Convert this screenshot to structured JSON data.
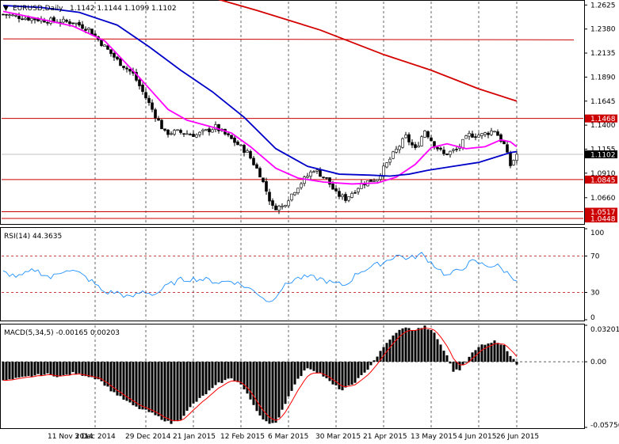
{
  "header": {
    "symbol": "EURUSD,Daily",
    "ohlc": "1.1142 1.1144 1.1099 1.1102"
  },
  "colors": {
    "bull": "#ffffff",
    "bear": "#000000",
    "ma_fast": "#ff00ff",
    "ma_mid": "#0000c8",
    "ma_slow": "#d40000",
    "level_line": "#cc0000",
    "rsi": "#1e90ff",
    "macd_signal": "#ff0000",
    "grid": "#000000"
  },
  "chart_data": [
    {
      "type": "candlestick",
      "title": "EURUSD,Daily",
      "ylim": [
        1.04,
        1.266
      ],
      "y_ticks": [
        "1.2625",
        "1.2380",
        "1.2135",
        "1.1890",
        "1.1645",
        "1.1400",
        "1.1155",
        "1.0910",
        "1.0660"
      ],
      "x_tick_labels": [
        "11 Nov 2014",
        "3 Dec 2014",
        "29 Dec 2014",
        "21 Jan 2015",
        "12 Feb 2015",
        "6 Mar 2015",
        "30 Mar 2015",
        "21 Apr 2015",
        "13 May 2015",
        "4 Jun 2015",
        "26 Jun 2015"
      ],
      "bars_count": 163,
      "price_anchors": [
        [
          0,
          1.253
        ],
        [
          8,
          1.249
        ],
        [
          16,
          1.246
        ],
        [
          22,
          1.245
        ],
        [
          27,
          1.238
        ],
        [
          32,
          1.22
        ],
        [
          36,
          1.206
        ],
        [
          41,
          1.192
        ],
        [
          46,
          1.162
        ],
        [
          51,
          1.132
        ],
        [
          55,
          1.133
        ],
        [
          61,
          1.13
        ],
        [
          67,
          1.138
        ],
        [
          73,
          1.123
        ],
        [
          77,
          1.112
        ],
        [
          81,
          1.09
        ],
        [
          85,
          1.056
        ],
        [
          88,
          1.057
        ],
        [
          93,
          1.078
        ],
        [
          98,
          1.095
        ],
        [
          102,
          1.085
        ],
        [
          105,
          1.07
        ],
        [
          108,
          1.065
        ],
        [
          113,
          1.08
        ],
        [
          118,
          1.086
        ],
        [
          123,
          1.11
        ],
        [
          127,
          1.128
        ],
        [
          130,
          1.115
        ],
        [
          133,
          1.135
        ],
        [
          136,
          1.12
        ],
        [
          139,
          1.11
        ],
        [
          143,
          1.115
        ],
        [
          147,
          1.13
        ],
        [
          151,
          1.13
        ],
        [
          155,
          1.135
        ],
        [
          158,
          1.12
        ],
        [
          160,
          1.099
        ],
        [
          162,
          1.1102
        ]
      ],
      "moving_averages": [
        {
          "name": "",
          "color": "#ff00ff",
          "values": [
            [
              0,
              1.256
            ],
            [
              12,
              1.248
            ],
            [
              22,
              1.241
            ],
            [
              32,
              1.226
            ],
            [
              42,
              1.192
            ],
            [
              52,
              1.156
            ],
            [
              58,
              1.145
            ],
            [
              66,
              1.138
            ],
            [
              72,
              1.132
            ],
            [
              78,
              1.118
            ],
            [
              86,
              1.096
            ],
            [
              93,
              1.086
            ],
            [
              101,
              1.082
            ],
            [
              110,
              1.08
            ],
            [
              118,
              1.081
            ],
            [
              124,
              1.087
            ],
            [
              130,
              1.1
            ],
            [
              135,
              1.117
            ],
            [
              140,
              1.121
            ],
            [
              146,
              1.116
            ],
            [
              152,
              1.118
            ],
            [
              157,
              1.125
            ],
            [
              160,
              1.123
            ],
            [
              162,
              1.118
            ]
          ]
        },
        {
          "name": "",
          "color": "#0000c8",
          "values": [
            [
              0,
              1.262
            ],
            [
              12,
              1.26
            ],
            [
              24,
              1.255
            ],
            [
              36,
              1.242
            ],
            [
              46,
              1.22
            ],
            [
              56,
              1.196
            ],
            [
              66,
              1.174
            ],
            [
              76,
              1.148
            ],
            [
              86,
              1.116
            ],
            [
              96,
              1.098
            ],
            [
              106,
              1.09
            ],
            [
              116,
              1.089
            ],
            [
              122,
              1.088
            ],
            [
              128,
              1.09
            ],
            [
              134,
              1.094
            ],
            [
              142,
              1.098
            ],
            [
              150,
              1.102
            ],
            [
              156,
              1.108
            ],
            [
              160,
              1.112
            ],
            [
              162,
              1.113
            ]
          ]
        },
        {
          "name": "",
          "color": "#d40000",
          "values": [
            [
              66,
              1.27
            ],
            [
              80,
              1.257
            ],
            [
              100,
              1.237
            ],
            [
              120,
              1.212
            ],
            [
              135,
              1.196
            ],
            [
              150,
              1.177
            ],
            [
              162,
              1.1645
            ]
          ]
        }
      ],
      "horizontal_levels": [
        {
          "label": "1.1468",
          "value": 1.1468
        },
        {
          "label": "1.0845",
          "value": 1.0845
        },
        {
          "label": "1.0517",
          "value": 1.0517
        },
        {
          "label": "1.0448",
          "value": 1.0448
        }
      ],
      "trend_line": {
        "from": [
          0,
          1.228
        ],
        "to": [
          180,
          1.227
        ]
      },
      "current_price": {
        "label": "1.1102",
        "value": 1.1102
      }
    },
    {
      "type": "line",
      "title": "RSI(14) 44.3635",
      "ylim": [
        0,
        100
      ],
      "y_ticks": [
        "100",
        "70",
        "30",
        "0"
      ],
      "levels": [
        70,
        30
      ],
      "values": [
        [
          0,
          52
        ],
        [
          5,
          47
        ],
        [
          10,
          55
        ],
        [
          15,
          46
        ],
        [
          20,
          56
        ],
        [
          24,
          51
        ],
        [
          28,
          42
        ],
        [
          32,
          30
        ],
        [
          36,
          30
        ],
        [
          40,
          24
        ],
        [
          44,
          31
        ],
        [
          48,
          28
        ],
        [
          52,
          38
        ],
        [
          56,
          44
        ],
        [
          60,
          45
        ],
        [
          64,
          44
        ],
        [
          68,
          41
        ],
        [
          72,
          43
        ],
        [
          76,
          37
        ],
        [
          80,
          30
        ],
        [
          84,
          19
        ],
        [
          88,
          35
        ],
        [
          92,
          45
        ],
        [
          96,
          47
        ],
        [
          100,
          45
        ],
        [
          104,
          40
        ],
        [
          108,
          38
        ],
        [
          112,
          52
        ],
        [
          116,
          58
        ],
        [
          120,
          63
        ],
        [
          124,
          71
        ],
        [
          128,
          67
        ],
        [
          132,
          72
        ],
        [
          136,
          60
        ],
        [
          140,
          48
        ],
        [
          144,
          55
        ],
        [
          148,
          64
        ],
        [
          152,
          60
        ],
        [
          156,
          59
        ],
        [
          160,
          49
        ],
        [
          162,
          44
        ]
      ]
    },
    {
      "type": "bar",
      "title": "MACD(5,34,5) -0.00165 0.00203",
      "ylim": [
        -0.05756,
        0.03201
      ],
      "y_ticks": [
        "0.03201",
        "0.00",
        "-0.05756"
      ],
      "histogram_anchors": [
        [
          0,
          -0.017
        ],
        [
          6,
          -0.014
        ],
        [
          10,
          -0.012
        ],
        [
          14,
          -0.011
        ],
        [
          18,
          -0.013
        ],
        [
          22,
          -0.01
        ],
        [
          26,
          -0.012
        ],
        [
          30,
          -0.015
        ],
        [
          34,
          -0.025
        ],
        [
          38,
          -0.033
        ],
        [
          42,
          -0.04
        ],
        [
          46,
          -0.044
        ],
        [
          50,
          -0.05
        ],
        [
          53,
          -0.054
        ],
        [
          56,
          -0.05
        ],
        [
          60,
          -0.037
        ],
        [
          64,
          -0.028
        ],
        [
          68,
          -0.019
        ],
        [
          72,
          -0.014
        ],
        [
          75,
          -0.02
        ],
        [
          78,
          -0.033
        ],
        [
          81,
          -0.047
        ],
        [
          84,
          -0.055
        ],
        [
          86,
          -0.054
        ],
        [
          88,
          -0.042
        ],
        [
          92,
          -0.019
        ],
        [
          96,
          -0.005
        ],
        [
          100,
          -0.01
        ],
        [
          104,
          -0.02
        ],
        [
          107,
          -0.025
        ],
        [
          110,
          -0.02
        ],
        [
          114,
          -0.01
        ],
        [
          118,
          0.005
        ],
        [
          122,
          0.02
        ],
        [
          126,
          0.03
        ],
        [
          130,
          0.028
        ],
        [
          133,
          0.031
        ],
        [
          136,
          0.025
        ],
        [
          138,
          0.015
        ],
        [
          140,
          0.005
        ],
        [
          142,
          -0.008
        ],
        [
          144,
          -0.007
        ],
        [
          147,
          0.005
        ],
        [
          151,
          0.015
        ],
        [
          155,
          0.018
        ],
        [
          158,
          0.015
        ],
        [
          160,
          0.005
        ],
        [
          162,
          -0.002
        ]
      ]
    }
  ]
}
